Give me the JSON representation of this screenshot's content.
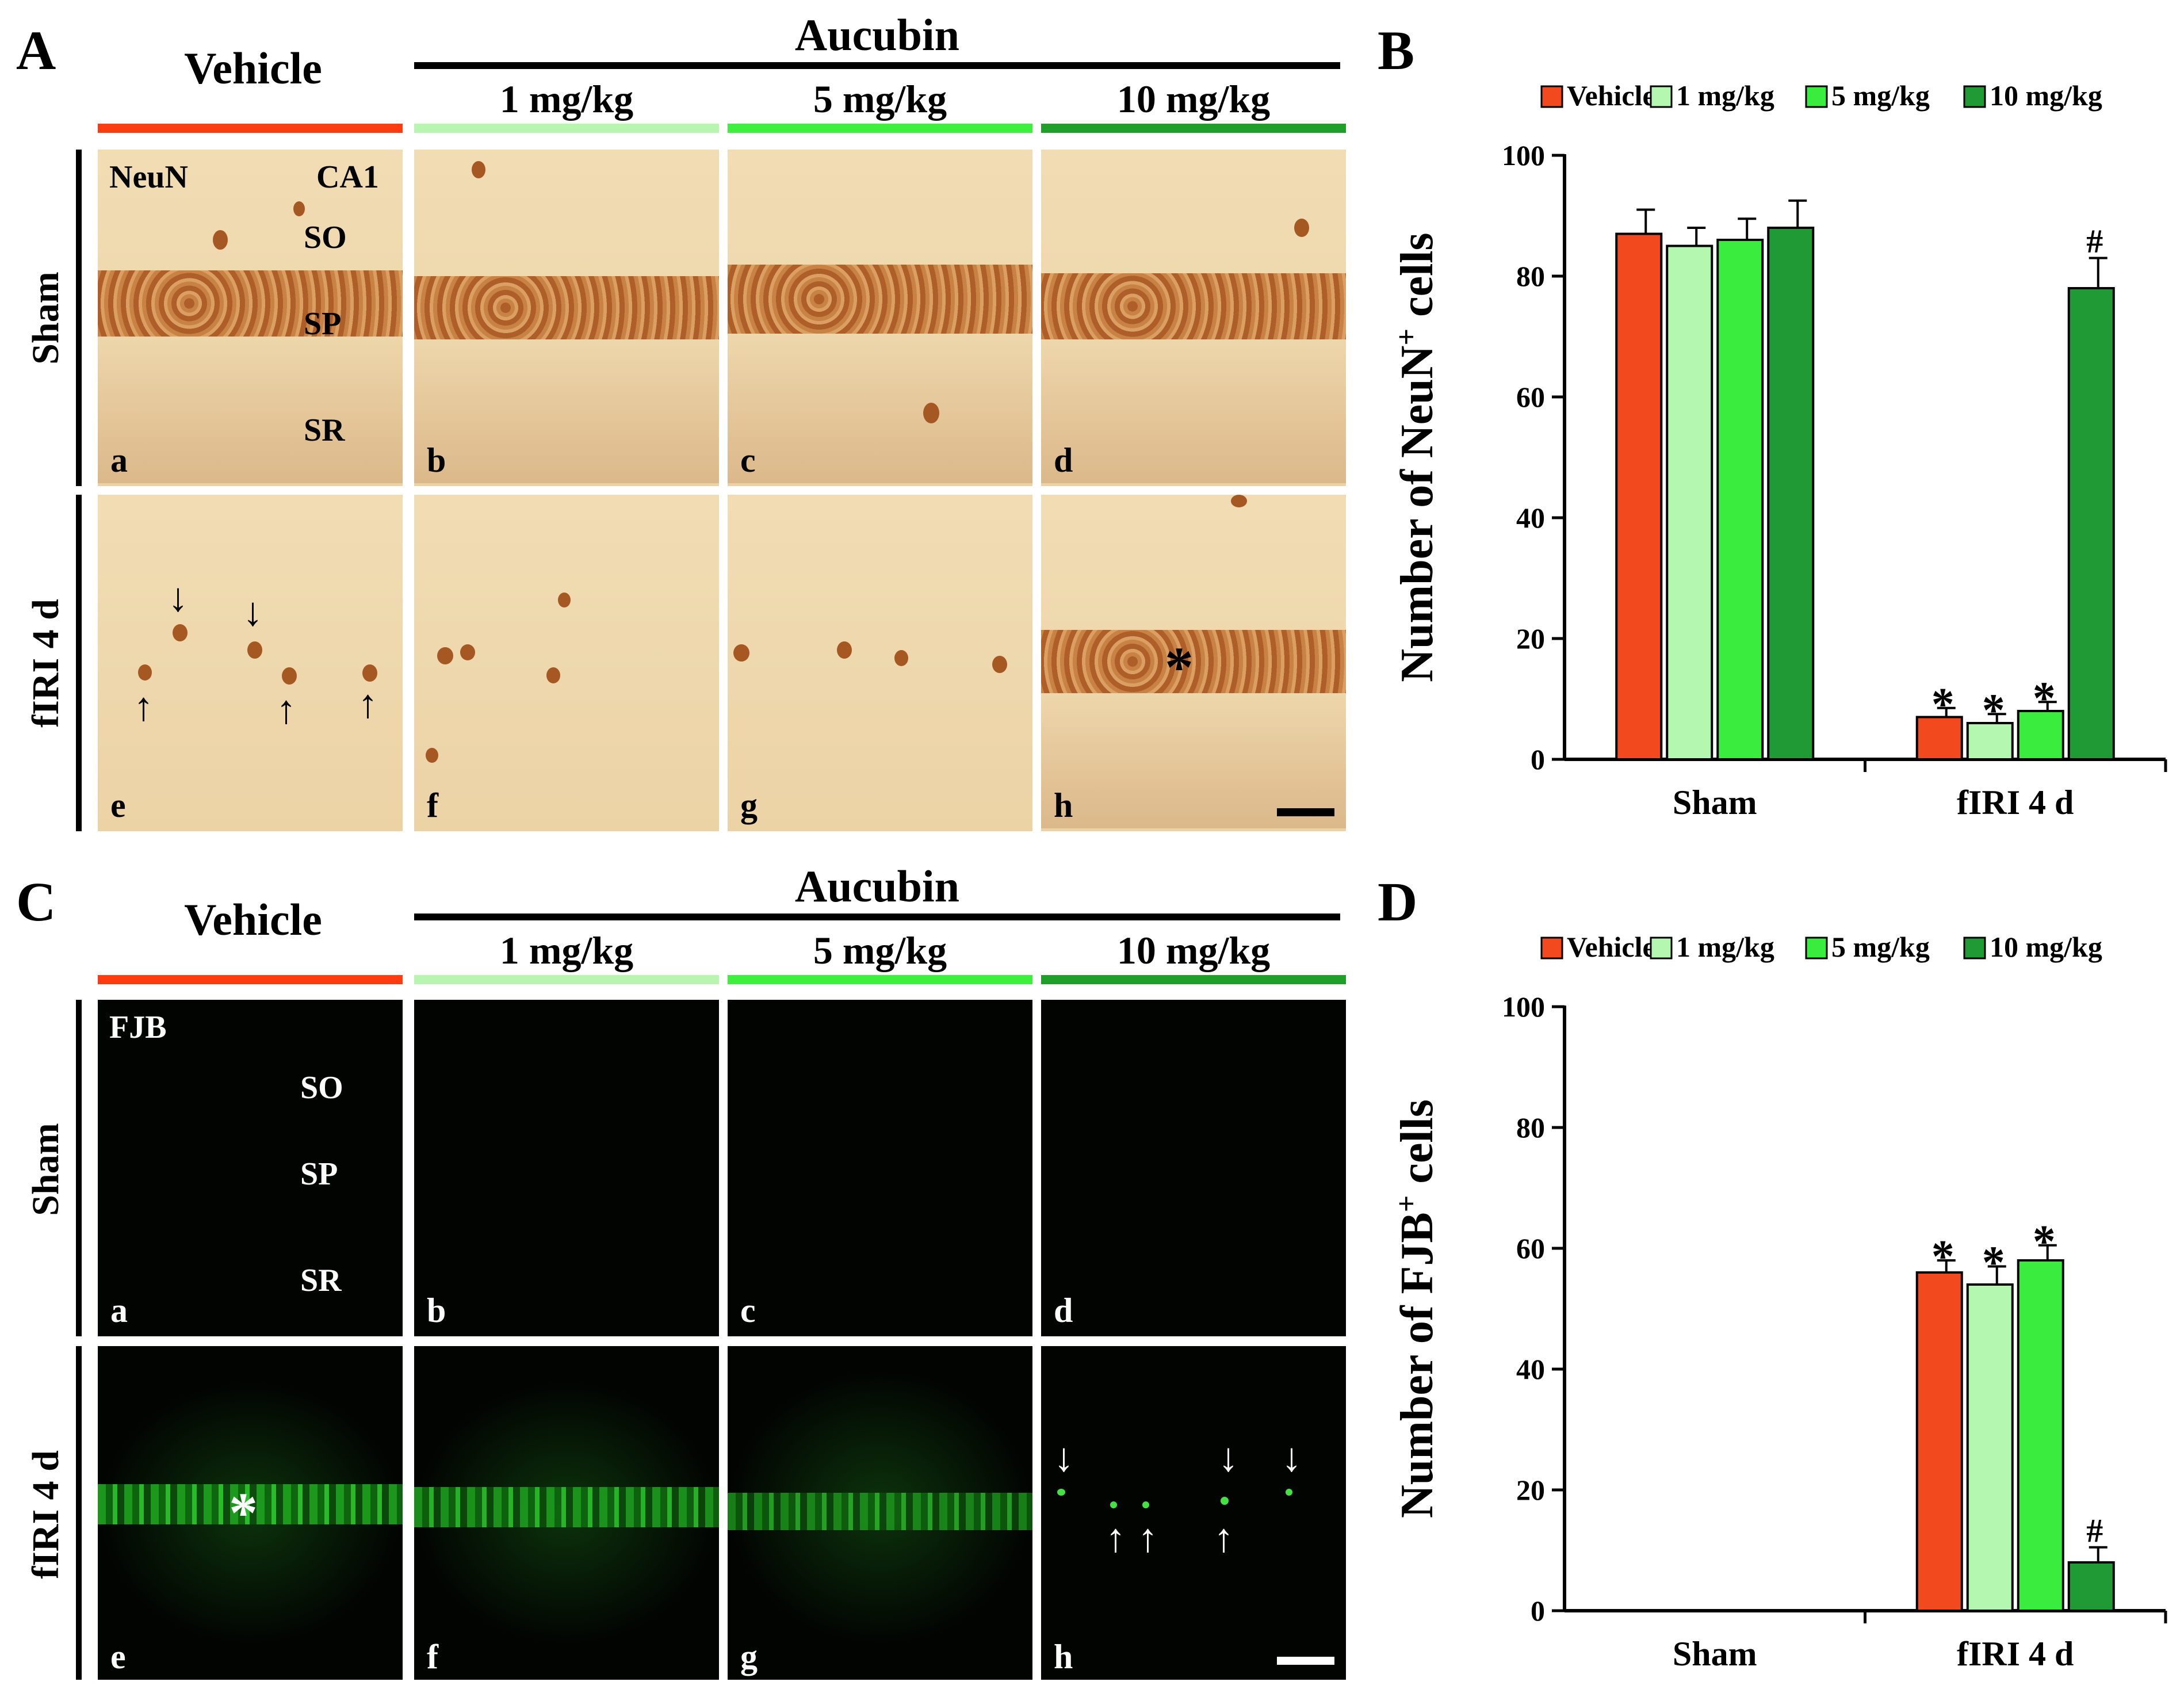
{
  "panels": {
    "A": "A",
    "B": "B",
    "C": "C",
    "D": "D"
  },
  "headers": {
    "vehicle": "Vehicle",
    "aucubin": "Aucubin",
    "doses": [
      "1 mg/kg",
      "5 mg/kg",
      "10 mg/kg"
    ]
  },
  "rows": {
    "sham": "Sham",
    "firi": "fIRI 4 d"
  },
  "stains": {
    "neun": "NeuN",
    "region": "CA1",
    "fjb": "FJB"
  },
  "layers": {
    "so": "SO",
    "sp": "SP",
    "sr": "SR"
  },
  "sublabels_top": [
    "a",
    "b",
    "c",
    "d"
  ],
  "sublabels_bottom": [
    "e",
    "f",
    "g",
    "h"
  ],
  "asterisk": "*",
  "colors": {
    "vehicle": "#ff3b10",
    "dose1": "#b8f5b0",
    "dose5": "#3df03d",
    "dose10": "#1f9e2a",
    "bar_red": "#f24a1e",
    "bar_light": "#b3f7b0",
    "bar_mid": "#39ec3d",
    "bar_dark": "#1f9a35"
  },
  "chart_data": [
    {
      "id": "B",
      "type": "bar",
      "ylabel": "Number of NeuN+ cells",
      "ylabel_main": "Number of NeuN",
      "ylabel_sup": "+",
      "ylabel_tail": " cells",
      "ylim": [
        0,
        100
      ],
      "yticks": [
        "0",
        "20",
        "40",
        "60",
        "80",
        "100"
      ],
      "categories": [
        "Sham",
        "fIRI 4 d"
      ],
      "legend": [
        "Vehicle",
        "1 mg/kg",
        "5 mg/kg",
        "10 mg/kg"
      ],
      "series": [
        {
          "name": "Vehicle",
          "values": [
            87,
            7
          ],
          "errors": [
            4,
            1.5
          ],
          "marks": [
            "",
            "*"
          ]
        },
        {
          "name": "1 mg/kg",
          "values": [
            85,
            6
          ],
          "errors": [
            3,
            1.5
          ],
          "marks": [
            "",
            "*"
          ]
        },
        {
          "name": "5 mg/kg",
          "values": [
            86,
            8
          ],
          "errors": [
            3.5,
            1.5
          ],
          "marks": [
            "",
            "*"
          ]
        },
        {
          "name": "10 mg/kg",
          "values": [
            88,
            78
          ],
          "errors": [
            4.5,
            5
          ],
          "marks": [
            "",
            "#"
          ]
        }
      ]
    },
    {
      "id": "D",
      "type": "bar",
      "ylabel": "Number of FJB+ cells",
      "ylabel_main": "Number of FJB",
      "ylabel_sup": "+",
      "ylabel_tail": " cells",
      "ylim": [
        0,
        100
      ],
      "yticks": [
        "0",
        "20",
        "40",
        "60",
        "80",
        "100"
      ],
      "categories": [
        "Sham",
        "fIRI 4 d"
      ],
      "legend": [
        "Vehicle",
        "1 mg/kg",
        "5 mg/kg",
        "10 mg/kg"
      ],
      "series": [
        {
          "name": "Vehicle",
          "values": [
            0,
            56
          ],
          "errors": [
            0,
            2
          ],
          "marks": [
            "",
            "*"
          ]
        },
        {
          "name": "1 mg/kg",
          "values": [
            0,
            54
          ],
          "errors": [
            0,
            3
          ],
          "marks": [
            "",
            "*"
          ]
        },
        {
          "name": "5 mg/kg",
          "values": [
            0,
            58
          ],
          "errors": [
            0,
            2.5
          ],
          "marks": [
            "",
            "*"
          ]
        },
        {
          "name": "10 mg/kg",
          "values": [
            0,
            8
          ],
          "errors": [
            0,
            2.5
          ],
          "marks": [
            "",
            "#"
          ]
        }
      ]
    }
  ]
}
